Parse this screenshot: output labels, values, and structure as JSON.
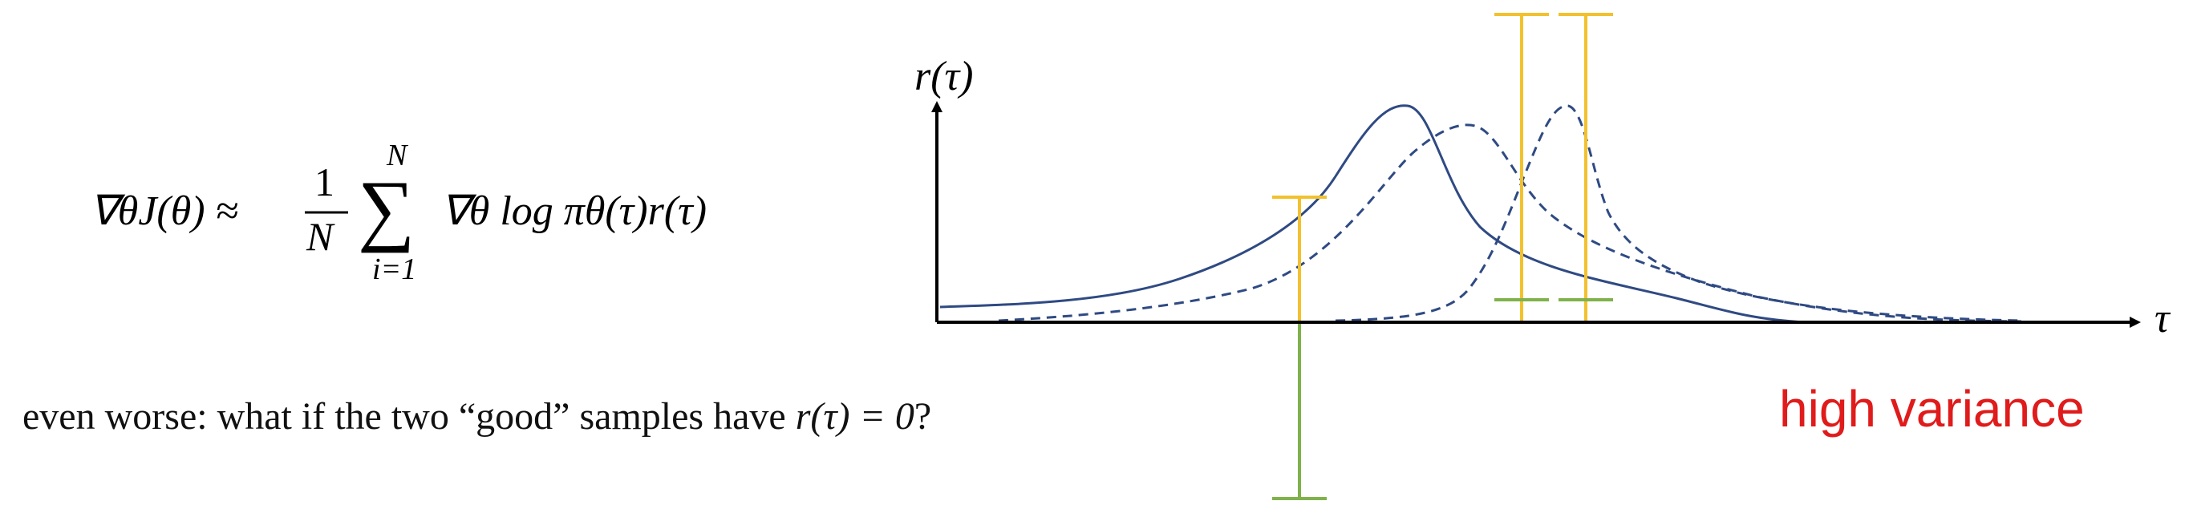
{
  "formula": {
    "lhs": "∇θJ(θ) ≈",
    "frac_num": "1",
    "frac_den": "N",
    "sum_upper": "N",
    "sum_lower": "i=1",
    "rhs": "∇θ log πθ(τ)r(τ)"
  },
  "question": {
    "prefix": "even worse: what if the two “good” samples have ",
    "math": "r(τ) = 0",
    "suffix": "?"
  },
  "figure": {
    "y_axis_label": "r(τ)",
    "x_axis_label": "τ",
    "annotation": "high variance",
    "colors": {
      "axis": "#000000",
      "curve": "#2F4A83",
      "sample_positive": "#F2C12E",
      "sample_negative": "#7FB24A",
      "annotation": "#E01B1B"
    },
    "curves": [
      {
        "style": "solid"
      },
      {
        "style": "dashed"
      },
      {
        "style": "dashed"
      }
    ],
    "samples": [
      {
        "reward_sign": "positive",
        "reward_bar_color": "sample_positive",
        "baseline_bar_color": "sample_negative"
      },
      {
        "reward_sign": "positive",
        "reward_bar_color": "sample_positive",
        "baseline_bar_color": "sample_negative"
      },
      {
        "reward_sign": "positive",
        "reward_bar_color": "sample_positive",
        "baseline_bar_color": "sample_negative"
      }
    ]
  }
}
